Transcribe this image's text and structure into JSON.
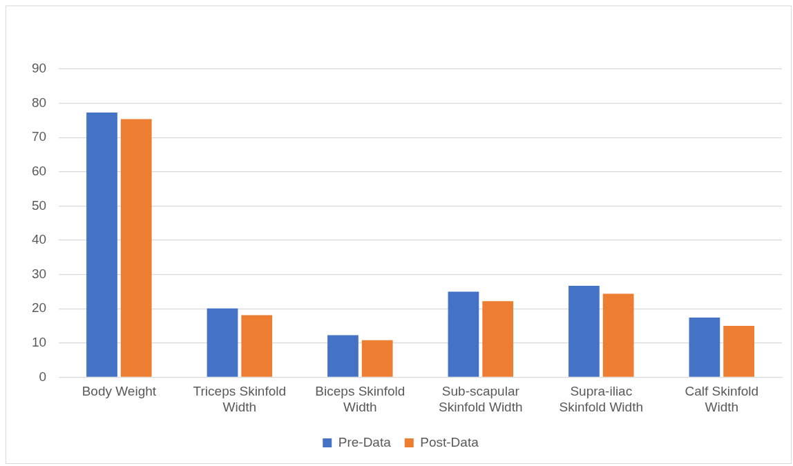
{
  "chart_data": {
    "type": "bar",
    "categories": [
      [
        "Body Weight"
      ],
      [
        "Triceps Skinfold",
        "Width"
      ],
      [
        "Biceps Skinfold",
        "Width"
      ],
      [
        "Sub-scapular",
        "Skinfold Width"
      ],
      [
        "Supra-iliac",
        "Skinfold Width"
      ],
      [
        "Calf Skinfold",
        "Width"
      ]
    ],
    "series": [
      {
        "name": "Pre-Data",
        "color": "#4472c4",
        "values": [
          77.3,
          20.1,
          12.3,
          25.0,
          26.7,
          17.4
        ]
      },
      {
        "name": "Post-Data",
        "color": "#ed7d31",
        "values": [
          75.4,
          18.1,
          10.8,
          22.2,
          24.4,
          15.0
        ]
      }
    ],
    "ylim": [
      0,
      90
    ],
    "yticks": [
      0,
      10,
      20,
      30,
      40,
      50,
      60,
      70,
      80,
      90
    ],
    "grid": "y",
    "legend": "bottom"
  }
}
